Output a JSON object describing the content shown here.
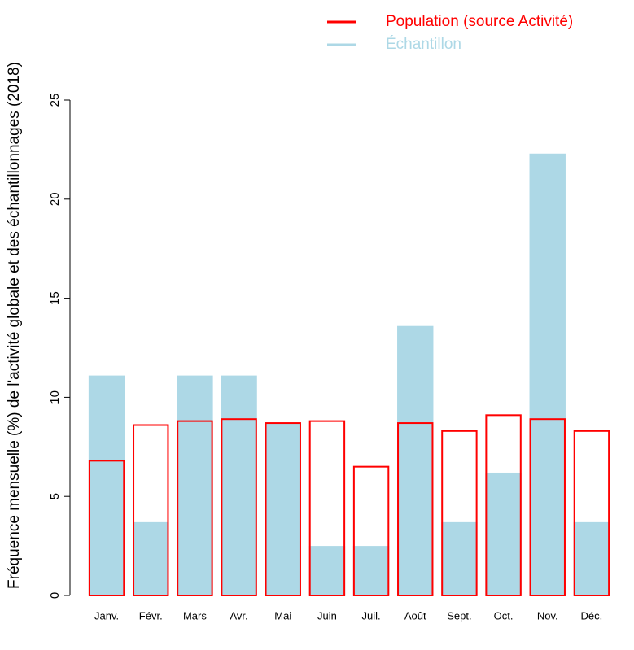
{
  "chart_data": {
    "type": "bar",
    "y_label": "Fréquence mensuelle (%) de l'activité globale et des échantillonnages (2018)",
    "categories": [
      "Janv.",
      "Févr.",
      "Mars",
      "Avr.",
      "Mai",
      "Juin",
      "Juil.",
      "Août",
      "Sept.",
      "Oct.",
      "Nov.",
      "Déc."
    ],
    "series": [
      {
        "name": "Population (source Activité)",
        "color": "#ff0000",
        "values": [
          6.8,
          8.6,
          8.8,
          8.9,
          8.7,
          8.8,
          6.5,
          8.7,
          8.3,
          9.1,
          8.9,
          8.3
        ]
      },
      {
        "name": "Échantillon",
        "color": "#add8e6",
        "values": [
          11.1,
          3.7,
          11.1,
          11.1,
          8.7,
          2.5,
          2.5,
          13.6,
          3.7,
          6.2,
          22.3,
          3.7
        ]
      }
    ],
    "ylim": [
      0,
      25
    ],
    "yticks": [
      0,
      5,
      10,
      15,
      20,
      25
    ],
    "legend": "top-right"
  }
}
